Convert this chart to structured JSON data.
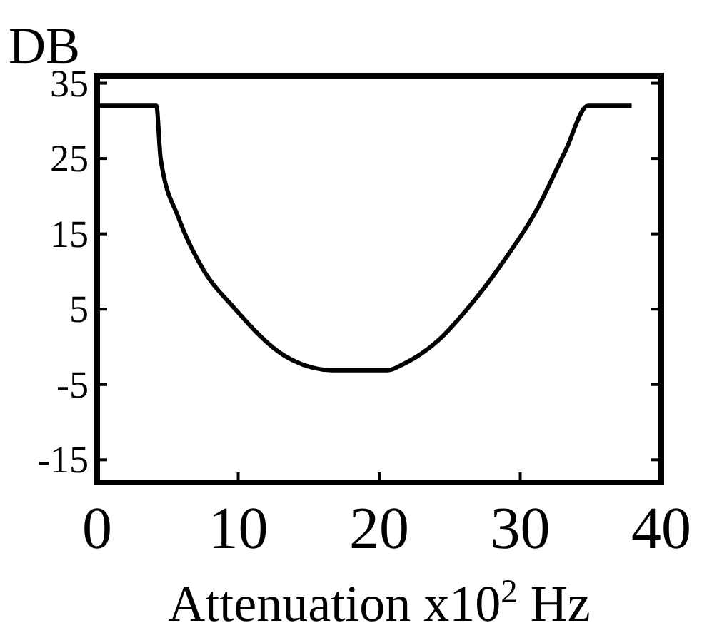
{
  "chart_data": {
    "type": "line",
    "ylabel": "DB",
    "xlabel": "Attenuation x10$^{2}$ Hz",
    "series": [
      {
        "color": "#000000",
        "x": [
          0,
          4.2,
          4.5,
          5.8,
          7.6,
          9.6,
          13.3,
          16.7,
          17.4,
          20.6,
          21.7,
          24.1,
          26.5,
          28.8,
          31.2,
          33.2,
          34.8,
          37.9
        ],
        "values": [
          32,
          32,
          25,
          17,
          10,
          5.4,
          -1.2,
          -3.1,
          -3.1,
          -3.1,
          -2.3,
          0.7,
          5.6,
          11.3,
          18.3,
          26,
          32,
          32
        ]
      }
    ],
    "xlim": [
      0,
      40
    ],
    "xticks": [
      0,
      10,
      20,
      30,
      40
    ],
    "ylim": [
      -18,
      36
    ],
    "yticks": [
      -15,
      -5,
      5,
      15,
      25,
      35
    ],
    "grid": false,
    "marker": "none",
    "line_style": "solid"
  }
}
